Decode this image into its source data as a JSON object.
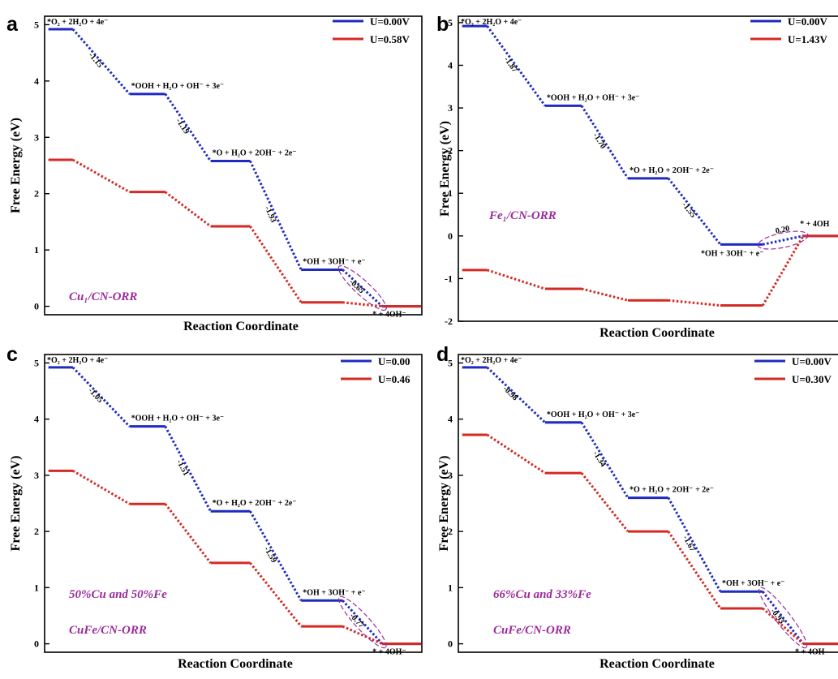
{
  "chart_data": [
    {
      "type": "line",
      "panel": "a",
      "xlabel": "Reaction Coordinate",
      "ylabel": "Free Energy (eV)",
      "ylim": [
        -0.15,
        5.15
      ],
      "yticks": [
        0,
        1,
        2,
        3,
        4,
        5
      ],
      "x": [
        1,
        2,
        3,
        4,
        5
      ],
      "step_labels": [
        "*O₂ + 2H₂O + 4e⁻",
        "*OOH + H₂O + OH⁻ + 3e⁻",
        "*O + H₂O + 2OH⁻ + 2e⁻",
        "*OH + 3OH⁻ + e⁻",
        "* + 4OH⁻"
      ],
      "series": [
        {
          "name": "U=0.00V",
          "color": "#1f2bc0",
          "values": [
            4.92,
            3.77,
            2.58,
            0.65,
            0.0
          ]
        },
        {
          "name": "U=0.58V",
          "color": "#d42a24",
          "values": [
            2.6,
            2.03,
            1.42,
            0.07,
            0.0
          ]
        }
      ],
      "dg_labels": [
        "-1.15",
        "-1.19",
        "-1.93",
        "-0.65"
      ],
      "annotations": [
        "Cu₁/CN-ORR"
      ],
      "legend": "top-right"
    },
    {
      "type": "line",
      "panel": "b",
      "xlabel": "Reaction Coordinate",
      "ylabel": "Free Energy (eV)",
      "ylim": [
        -2.0,
        5.15
      ],
      "yticks": [
        -2,
        -1,
        0,
        1,
        2,
        3,
        4,
        5
      ],
      "x": [
        1,
        2,
        3,
        4,
        5
      ],
      "step_labels": [
        "*O₂ + 2H₂O + 4e⁻",
        "*OOH + H₂O + OH⁻ + 3e⁻",
        "*O + H₂O + 2OH⁻ + 2e⁻",
        "*OH + 3OH⁻ + e⁻",
        "* + 4OH"
      ],
      "series": [
        {
          "name": "U=0.00V",
          "color": "#1f2bc0",
          "values": [
            4.92,
            3.05,
            1.35,
            -0.2,
            0.0
          ]
        },
        {
          "name": "U=1.43V",
          "color": "#d42a24",
          "values": [
            -0.8,
            -1.24,
            -1.51,
            -1.63,
            0.0
          ]
        }
      ],
      "dg_labels": [
        "-1.87",
        "-1.70",
        "-1.55",
        "0.20"
      ],
      "annotations": [
        "Fe₁/CN-ORR"
      ],
      "legend": "top-right"
    },
    {
      "type": "line",
      "panel": "c",
      "xlabel": "Reaction Coordinate",
      "ylabel": "Free Energy (eV)",
      "ylim": [
        -0.15,
        5.15
      ],
      "yticks": [
        0,
        1,
        2,
        3,
        4,
        5
      ],
      "x": [
        1,
        2,
        3,
        4,
        5
      ],
      "step_labels": [
        "*O₂ + 2H₂O + 4e⁻",
        "*OOH + H₂O + OH⁻ + 3e⁻",
        "*O + H₂O + 2OH⁻ + 2e⁻",
        "*OH + 3OH⁻ + e⁻",
        "* + 4OH⁻"
      ],
      "series": [
        {
          "name": "U=0.00",
          "color": "#1f2bc0",
          "values": [
            4.92,
            3.87,
            2.36,
            0.77,
            0.0
          ]
        },
        {
          "name": "U=0.46",
          "color": "#d42a24",
          "values": [
            3.08,
            2.49,
            1.44,
            0.31,
            0.0
          ]
        }
      ],
      "dg_labels": [
        "-1.05",
        "-1.51",
        "-1.59",
        "-0.77"
      ],
      "annotations": [
        "50%Cu and 50%Fe",
        "CuFe/CN-ORR"
      ],
      "legend": "top-right"
    },
    {
      "type": "line",
      "panel": "d",
      "xlabel": "Reaction Coordinate",
      "ylabel": "Free Energy (eV)",
      "ylim": [
        -0.15,
        5.15
      ],
      "yticks": [
        0,
        1,
        2,
        3,
        4,
        5
      ],
      "x": [
        1,
        2,
        3,
        4,
        5
      ],
      "step_labels": [
        "*O₂ + 2H₂O + 4e⁻",
        "*OOH + H₂O + OH⁻ + 3e⁻",
        "*O + H₂O + 2OH⁻ + 2e⁻",
        "*OH + 3OH⁻ + e⁻",
        "* + 4OH"
      ],
      "series": [
        {
          "name": "U=0.00V",
          "color": "#1f2bc0",
          "values": [
            4.92,
            3.94,
            2.6,
            0.93,
            0.0
          ]
        },
        {
          "name": "U=0.30V",
          "color": "#d42a24",
          "values": [
            3.72,
            3.04,
            2.0,
            0.63,
            0.0
          ]
        }
      ],
      "dg_labels": [
        "-0.98",
        "-1.34",
        "-1.67",
        "-0.93"
      ],
      "annotations": [
        "66%Cu and 33%Fe",
        "CuFe/CN-ORR"
      ],
      "legend": "top-right"
    }
  ]
}
